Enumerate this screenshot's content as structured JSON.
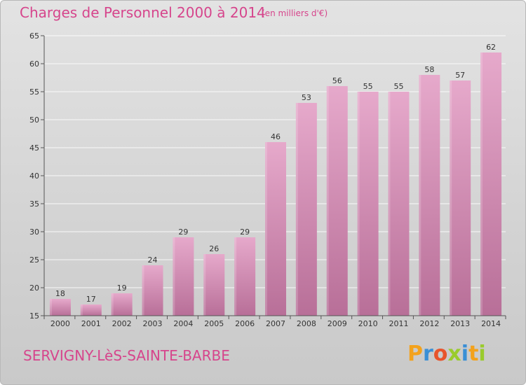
{
  "header": {
    "title": "Charges de Personnel 2000 à 2014",
    "unit_note": "(en milliers d'€)"
  },
  "footer": {
    "commune": "SERVIGNY-LèS-SAINTE-BARBE",
    "brand": "Proxiti"
  },
  "colors": {
    "title": "#d6458c",
    "bar_top": "#e6a9cb",
    "bar_bottom": "#b86f98",
    "brand_letters": [
      "#f3a21c",
      "#3a8fd6",
      "#e8542c",
      "#9acb2d",
      "#3a8fd6",
      "#f3a21c",
      "#9acb2d"
    ]
  },
  "chart_data": {
    "type": "bar",
    "categories": [
      "2000",
      "2001",
      "2002",
      "2003",
      "2004",
      "2005",
      "2006",
      "2007",
      "2008",
      "2009",
      "2010",
      "2011",
      "2012",
      "2013",
      "2014"
    ],
    "values": [
      18,
      17,
      19,
      24,
      29,
      26,
      29,
      46,
      53,
      56,
      55,
      55,
      58,
      57,
      62
    ],
    "ylim": [
      15,
      65
    ],
    "yticks": [
      15,
      20,
      25,
      30,
      35,
      40,
      45,
      50,
      55,
      60,
      65
    ],
    "grid": true,
    "xlabel": "",
    "ylabel": ""
  }
}
